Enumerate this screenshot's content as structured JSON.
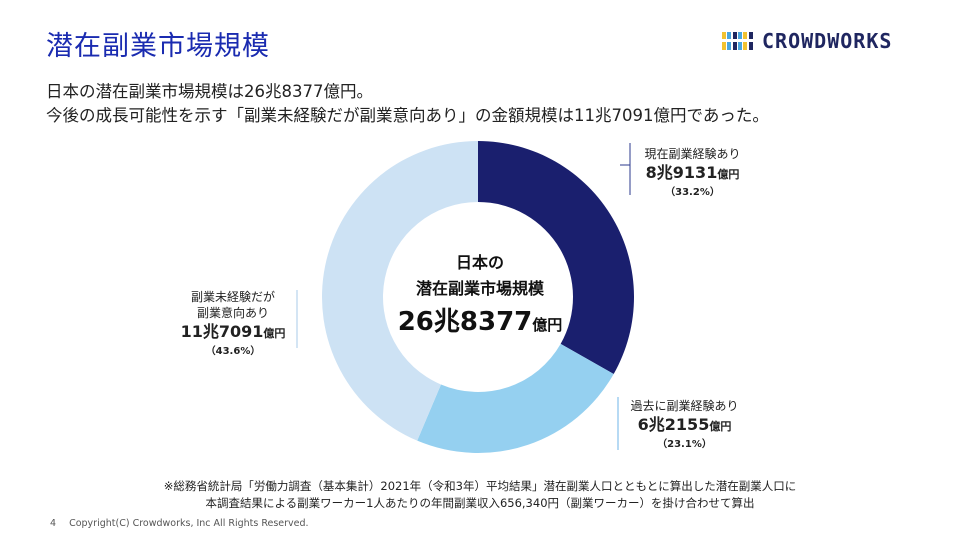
{
  "header": {
    "title": "潜在副業市場規模",
    "logo_text": "CROWDWORKS"
  },
  "intro": {
    "line1": "日本の潜在副業市場規模は26兆8377億円。",
    "line2": "今後の成長可能性を示す「副業未経験だが副業意向あり」の金額規模は11兆7091億円であった。"
  },
  "chart_data": {
    "type": "pie",
    "style": "donut",
    "title": "日本の潜在副業市場規模",
    "total": {
      "label_line1": "日本の",
      "label_line2": "潜在副業市場規模",
      "value_main": "26兆8377",
      "unit": "億円"
    },
    "slices": [
      {
        "name": "現在副業経験あり",
        "value": 89131,
        "percent": 33.2,
        "amount_main": "8兆9131",
        "unit": "億円",
        "percent_label": "（33.2%）",
        "color": "#1a1f6e"
      },
      {
        "name": "過去に副業経験あり",
        "value": 62155,
        "percent": 23.1,
        "amount_main": "6兆2155",
        "unit": "億円",
        "percent_label": "（23.1%）",
        "color": "#95d0f0"
      },
      {
        "name": "副業未経験だが副業意向あり",
        "name_line1": "副業未経験だが",
        "name_line2": "副業意向あり",
        "value": 117091,
        "percent": 43.6,
        "amount_main": "11兆7091",
        "unit": "億円",
        "percent_label": "（43.6%）",
        "color": "#cde2f4"
      }
    ]
  },
  "footnote": {
    "line1": "※総務省統計局「労働力調査（基本集計）2021年（令和3年）平均結果」潜在副業人口とともとに算出した潜在副業人口に",
    "line2": "本調査結果による副業ワーカー1人あたりの年間副業収入656,340円（副業ワーカー）を掛け合わせて算出"
  },
  "footer": {
    "page_number": "4",
    "copyright": "Copyright(C) Crowdworks, Inc All Rights Reserved."
  }
}
